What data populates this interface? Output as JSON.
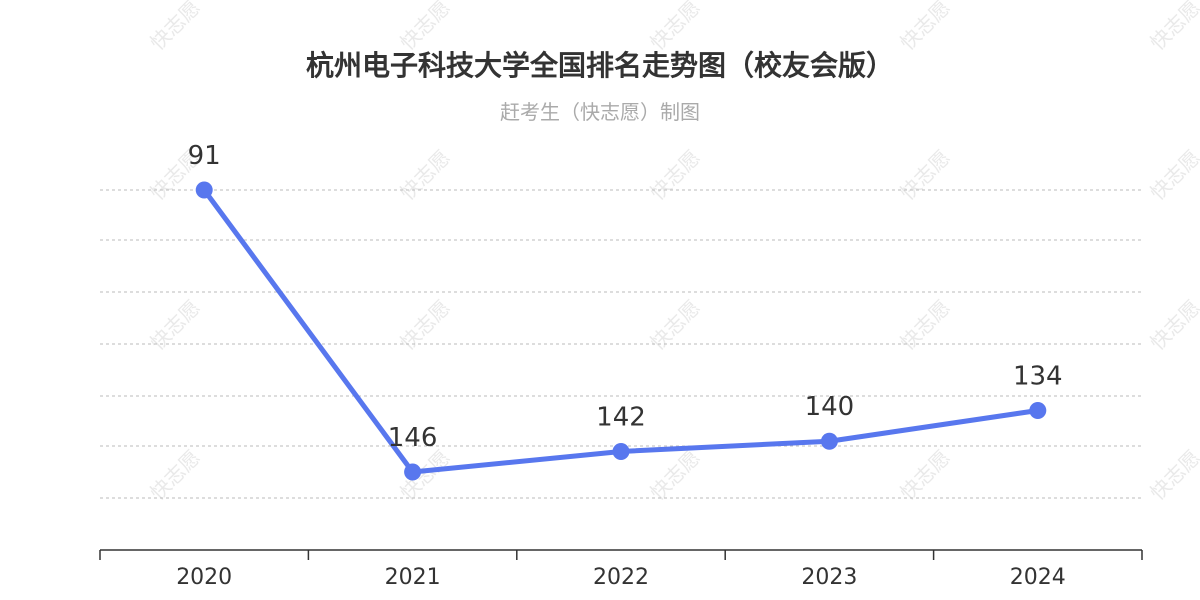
{
  "chart_data": {
    "type": "line",
    "title": "杭州电子科技大学全国排名走势图（校友会版）",
    "subtitle": "赶考生（快志愿）制图",
    "categories": [
      "2020",
      "2021",
      "2022",
      "2023",
      "2024"
    ],
    "series": [
      {
        "values": [
          91,
          146,
          142,
          140,
          134
        ],
        "color": "#5877ee"
      }
    ],
    "y_inverted": true,
    "ylim": [
      85,
      150
    ],
    "grid": true,
    "legend": "none"
  },
  "watermark": {
    "text": "快志愿"
  },
  "colors": {
    "series": "#5877ee",
    "text": "#333333",
    "subtitle": "#aaaaaa",
    "grid": "#bbbbbb"
  }
}
